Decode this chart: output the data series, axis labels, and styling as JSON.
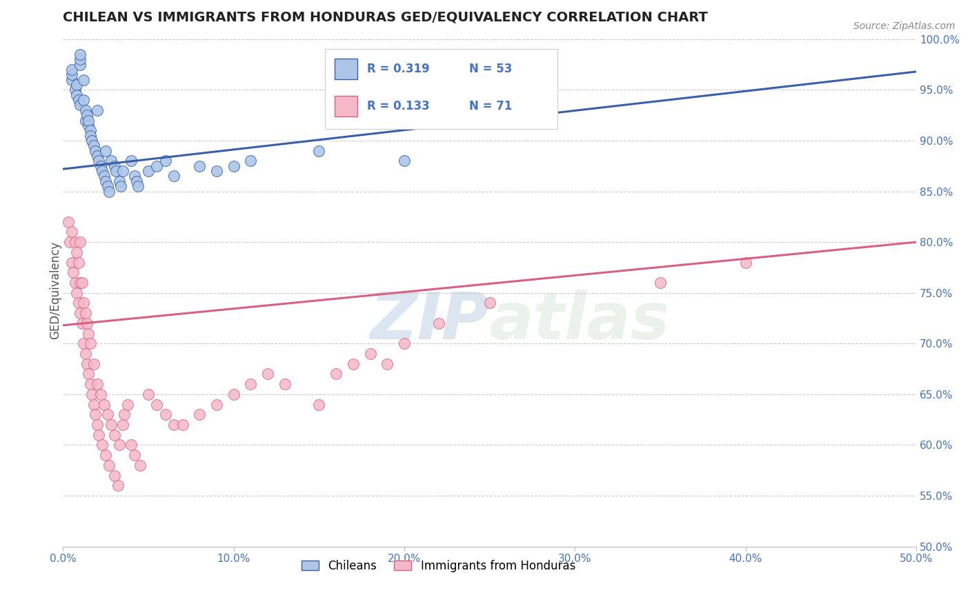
{
  "title": "CHILEAN VS IMMIGRANTS FROM HONDURAS GED/EQUIVALENCY CORRELATION CHART",
  "source": "Source: ZipAtlas.com",
  "ylabel": "GED/Equivalency",
  "xlim": [
    0.0,
    0.5
  ],
  "ylim": [
    0.5,
    1.005
  ],
  "xticks": [
    0.0,
    0.1,
    0.2,
    0.3,
    0.4,
    0.5
  ],
  "yticks": [
    0.5,
    0.55,
    0.6,
    0.65,
    0.7,
    0.75,
    0.8,
    0.85,
    0.9,
    0.95,
    1.0
  ],
  "ytick_labels": [
    "50.0%",
    "55.0%",
    "60.0%",
    "65.0%",
    "70.0%",
    "75.0%",
    "80.0%",
    "85.0%",
    "90.0%",
    "95.0%",
    "100.0%"
  ],
  "xtick_labels": [
    "0.0%",
    "10.0%",
    "20.0%",
    "30.0%",
    "40.0%",
    "50.0%"
  ],
  "blue_R": 0.319,
  "blue_N": 53,
  "pink_R": 0.133,
  "pink_N": 71,
  "blue_color": "#adc6e8",
  "pink_color": "#f5b8c8",
  "blue_line_color": "#3a5faa",
  "pink_line_color": "#d96080",
  "legend_label_blue": "Chileans",
  "legend_label_pink": "Immigrants from Honduras",
  "watermark": "ZIPatlas",
  "background_color": "#ffffff",
  "blue_scatter_x": [
    0.005,
    0.005,
    0.005,
    0.007,
    0.008,
    0.008,
    0.009,
    0.01,
    0.01,
    0.01,
    0.01,
    0.012,
    0.012,
    0.013,
    0.013,
    0.014,
    0.015,
    0.015,
    0.016,
    0.016,
    0.017,
    0.018,
    0.019,
    0.02,
    0.02,
    0.021,
    0.022,
    0.023,
    0.024,
    0.025,
    0.025,
    0.026,
    0.027,
    0.028,
    0.03,
    0.031,
    0.033,
    0.034,
    0.035,
    0.04,
    0.042,
    0.043,
    0.044,
    0.05,
    0.055,
    0.06,
    0.065,
    0.08,
    0.09,
    0.1,
    0.11,
    0.15,
    0.2
  ],
  "blue_scatter_y": [
    0.96,
    0.965,
    0.97,
    0.95,
    0.955,
    0.945,
    0.94,
    0.935,
    0.975,
    0.98,
    0.985,
    0.96,
    0.94,
    0.93,
    0.92,
    0.925,
    0.915,
    0.92,
    0.91,
    0.905,
    0.9,
    0.895,
    0.89,
    0.885,
    0.93,
    0.88,
    0.875,
    0.87,
    0.865,
    0.89,
    0.86,
    0.855,
    0.85,
    0.88,
    0.875,
    0.87,
    0.86,
    0.855,
    0.87,
    0.88,
    0.865,
    0.86,
    0.855,
    0.87,
    0.875,
    0.88,
    0.865,
    0.875,
    0.87,
    0.875,
    0.88,
    0.89,
    0.88
  ],
  "pink_scatter_x": [
    0.003,
    0.004,
    0.005,
    0.005,
    0.006,
    0.007,
    0.007,
    0.008,
    0.008,
    0.009,
    0.009,
    0.01,
    0.01,
    0.01,
    0.011,
    0.011,
    0.012,
    0.012,
    0.013,
    0.013,
    0.014,
    0.014,
    0.015,
    0.015,
    0.016,
    0.016,
    0.017,
    0.018,
    0.018,
    0.019,
    0.02,
    0.02,
    0.021,
    0.022,
    0.023,
    0.024,
    0.025,
    0.026,
    0.027,
    0.028,
    0.03,
    0.03,
    0.032,
    0.033,
    0.035,
    0.036,
    0.038,
    0.04,
    0.042,
    0.045,
    0.05,
    0.055,
    0.06,
    0.065,
    0.07,
    0.08,
    0.09,
    0.1,
    0.11,
    0.12,
    0.13,
    0.15,
    0.16,
    0.17,
    0.18,
    0.19,
    0.2,
    0.22,
    0.25,
    0.35,
    0.4
  ],
  "pink_scatter_y": [
    0.82,
    0.8,
    0.78,
    0.81,
    0.77,
    0.76,
    0.8,
    0.75,
    0.79,
    0.74,
    0.78,
    0.73,
    0.76,
    0.8,
    0.72,
    0.76,
    0.7,
    0.74,
    0.69,
    0.73,
    0.68,
    0.72,
    0.67,
    0.71,
    0.66,
    0.7,
    0.65,
    0.64,
    0.68,
    0.63,
    0.62,
    0.66,
    0.61,
    0.65,
    0.6,
    0.64,
    0.59,
    0.63,
    0.58,
    0.62,
    0.57,
    0.61,
    0.56,
    0.6,
    0.62,
    0.63,
    0.64,
    0.6,
    0.59,
    0.58,
    0.65,
    0.64,
    0.63,
    0.62,
    0.62,
    0.63,
    0.64,
    0.65,
    0.66,
    0.67,
    0.66,
    0.64,
    0.67,
    0.68,
    0.69,
    0.68,
    0.7,
    0.72,
    0.74,
    0.76,
    0.78
  ],
  "blue_trendline": [
    0.0,
    0.5,
    0.872,
    0.968
  ],
  "pink_trendline": [
    0.0,
    0.5,
    0.718,
    0.8
  ]
}
